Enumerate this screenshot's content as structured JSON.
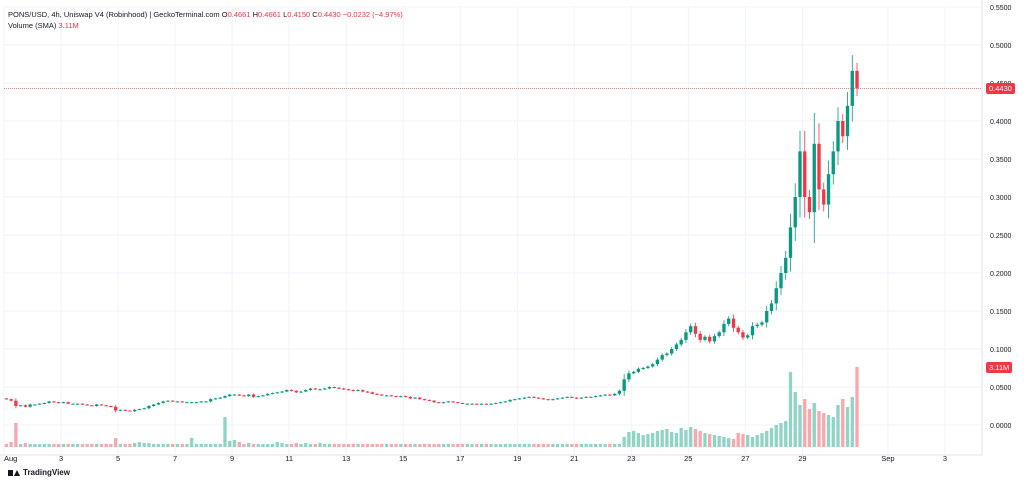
{
  "legend": {
    "title": "PONS/USD, 4h, Uniswap V4 (Robinhood) | GeckoTerminal.com",
    "o_label": "O",
    "o_value": "0.4661",
    "h_label": "H",
    "h_value": "0.4661",
    "l_label": "L",
    "l_value": "0.4150",
    "c_label": "C",
    "c_value": "0.4430",
    "change": "−0.0232 (−4.97%)",
    "volume_label": "Volume (SMA)",
    "volume_value": "3.11M"
  },
  "last_price_tag": "0.4430",
  "volume_tag": "3.11M",
  "branding": "TradingView",
  "colors": {
    "up": "#089981",
    "down": "#f23645",
    "vol_up": "#8fd4c5",
    "vol_down": "#f7a8ae",
    "grid": "#f0f3fa"
  },
  "chart_data": {
    "type": "candlestick",
    "y_ticks": [
      "0.0000",
      "0.0500",
      "0.1000",
      "0.1500",
      "0.2000",
      "0.2500",
      "0.3000",
      "0.3500",
      "0.4000",
      "0.4500",
      "0.5000",
      "0.5500"
    ],
    "y_tick_values": [
      0,
      0.05,
      0.1,
      0.15,
      0.2,
      0.25,
      0.3,
      0.35,
      0.4,
      0.45,
      0.5,
      0.55
    ],
    "x_ticks": [
      "Aug",
      "3",
      "5",
      "7",
      "9",
      "11",
      "13",
      "15",
      "17",
      "19",
      "21",
      "23",
      "25",
      "27",
      "29",
      "Sep",
      "3"
    ],
    "x_tick_days": [
      1,
      3,
      5,
      7,
      9,
      11,
      13,
      15,
      17,
      19,
      21,
      23,
      25,
      27,
      29,
      32,
      34
    ],
    "x_range_days": [
      1,
      35.3
    ],
    "last_price": 0.443,
    "candles_per_day": 6,
    "first_candle_day": 1,
    "closes": [
      0.034,
      0.032,
      0.025,
      0.026,
      0.024,
      0.027,
      0.027,
      0.028,
      0.029,
      0.031,
      0.03,
      0.029,
      0.03,
      0.028,
      0.028,
      0.028,
      0.027,
      0.026,
      0.025,
      0.027,
      0.026,
      0.025,
      0.024,
      0.019,
      0.02,
      0.019,
      0.018,
      0.02,
      0.021,
      0.022,
      0.025,
      0.027,
      0.029,
      0.031,
      0.032,
      0.031,
      0.031,
      0.03,
      0.03,
      0.03,
      0.03,
      0.031,
      0.031,
      0.034,
      0.035,
      0.036,
      0.038,
      0.04,
      0.04,
      0.039,
      0.038,
      0.04,
      0.037,
      0.038,
      0.039,
      0.041,
      0.042,
      0.043,
      0.044,
      0.046,
      0.045,
      0.043,
      0.044,
      0.046,
      0.048,
      0.047,
      0.047,
      0.048,
      0.05,
      0.049,
      0.048,
      0.047,
      0.046,
      0.045,
      0.046,
      0.044,
      0.043,
      0.041,
      0.04,
      0.039,
      0.039,
      0.038,
      0.037,
      0.038,
      0.037,
      0.035,
      0.036,
      0.034,
      0.033,
      0.032,
      0.03,
      0.029,
      0.03,
      0.031,
      0.03,
      0.029,
      0.028,
      0.028,
      0.028,
      0.027,
      0.028,
      0.027,
      0.028,
      0.029,
      0.03,
      0.031,
      0.033,
      0.034,
      0.035,
      0.036,
      0.037,
      0.036,
      0.035,
      0.034,
      0.033,
      0.034,
      0.035,
      0.036,
      0.037,
      0.036,
      0.035,
      0.036,
      0.037,
      0.037,
      0.038,
      0.039,
      0.04,
      0.039,
      0.041,
      0.045,
      0.06,
      0.068,
      0.07,
      0.074,
      0.075,
      0.077,
      0.08,
      0.086,
      0.092,
      0.094,
      0.1,
      0.106,
      0.112,
      0.122,
      0.13,
      0.12,
      0.112,
      0.116,
      0.11,
      0.117,
      0.122,
      0.133,
      0.14,
      0.128,
      0.122,
      0.115,
      0.118,
      0.13,
      0.132,
      0.135,
      0.15,
      0.16,
      0.18,
      0.2,
      0.22,
      0.26,
      0.3,
      0.36,
      0.3,
      0.28,
      0.37,
      0.31,
      0.29,
      0.33,
      0.36,
      0.4,
      0.38,
      0.42,
      0.466,
      0.443
    ],
    "volumes": [
      0.3,
      0.5,
      2.4,
      0.3,
      0.4,
      0.3,
      0.3,
      0.3,
      0.3,
      0.3,
      0.3,
      0.3,
      0.3,
      0.3,
      0.3,
      0.3,
      0.3,
      0.3,
      0.3,
      0.3,
      0.3,
      0.3,
      0.3,
      0.9,
      0.3,
      0.3,
      0.3,
      0.4,
      0.5,
      0.4,
      0.4,
      0.3,
      0.3,
      0.3,
      0.3,
      0.3,
      0.3,
      0.3,
      0.3,
      0.9,
      0.3,
      0.3,
      0.3,
      0.3,
      0.3,
      0.3,
      3.0,
      0.6,
      0.7,
      0.5,
      0.3,
      0.4,
      0.3,
      0.3,
      0.3,
      0.3,
      0.3,
      0.5,
      0.4,
      0.3,
      0.3,
      0.4,
      0.3,
      0.4,
      0.3,
      0.3,
      0.4,
      0.3,
      0.3,
      0.3,
      0.3,
      0.3,
      0.3,
      0.3,
      0.3,
      0.3,
      0.3,
      0.3,
      0.3,
      0.3,
      0.3,
      0.3,
      0.3,
      0.3,
      0.3,
      0.3,
      0.3,
      0.3,
      0.3,
      0.3,
      0.3,
      0.3,
      0.3,
      0.3,
      0.3,
      0.3,
      0.3,
      0.3,
      0.3,
      0.3,
      0.3,
      0.3,
      0.3,
      0.3,
      0.3,
      0.3,
      0.3,
      0.3,
      0.3,
      0.3,
      0.3,
      0.3,
      0.3,
      0.3,
      0.3,
      0.3,
      0.3,
      0.3,
      0.3,
      0.3,
      0.3,
      0.3,
      0.3,
      0.3,
      0.3,
      0.3,
      0.3,
      0.3,
      0.3,
      0.3,
      1.0,
      1.5,
      1.6,
      1.4,
      1.2,
      1.3,
      1.4,
      1.6,
      1.7,
      1.8,
      1.5,
      1.4,
      1.9,
      1.7,
      2.0,
      1.8,
      1.6,
      1.4,
      1.3,
      1.2,
      1.1,
      1.0,
      0.9,
      0.8,
      1.4,
      1.3,
      1.2,
      1.0,
      1.2,
      1.4,
      1.6,
      1.9,
      2.2,
      2.4,
      2.6,
      7.5,
      5.5,
      4.2,
      4.8,
      3.8,
      4.4,
      3.6,
      3.4,
      3.2,
      3.0,
      4.2,
      4.8,
      4.0,
      5.0,
      8.0,
      11.0,
      7.0,
      5.5,
      3.11
    ]
  }
}
